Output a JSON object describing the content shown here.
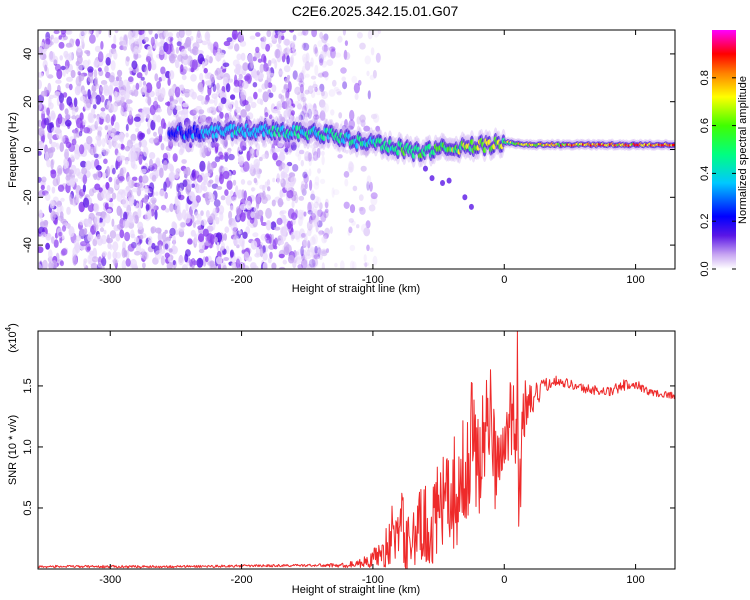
{
  "title": "C2E6.2025.342.15.01.G07",
  "colors": {
    "spectrum": [
      "#ffffff",
      "#e8d8fb",
      "#c8a6f2",
      "#8c3ef0",
      "#5a16e6",
      "#3a10d8",
      "#0000ff",
      "#00c8ff",
      "#00ff80",
      "#40ff00",
      "#ffff00",
      "#ff8000",
      "#ff0000",
      "#ff00ff"
    ],
    "snr_line": "#ee2a2a",
    "axis": "#000000"
  },
  "chart_data": [
    {
      "type": "heatmap",
      "title": "C2E6.2025.342.15.01.G07",
      "xlabel": "Height of straight line (km)",
      "ylabel": "Frequency (Hz)",
      "xlim": [
        -355,
        130
      ],
      "ylim": [
        -50,
        50
      ],
      "x_ticks": [
        -300,
        -200,
        -100,
        0,
        100
      ],
      "x_tick_labels": [
        "-300",
        "-200",
        "-100",
        "0",
        "100"
      ],
      "y_ticks": [
        -40,
        -20,
        0,
        20,
        40
      ],
      "y_tick_labels": [
        "-40",
        "-20",
        "0",
        "20",
        "40"
      ],
      "colorbar": {
        "label": "Normalized spectral amplitude",
        "range": [
          0,
          1
        ],
        "ticks": [
          0.0,
          0.2,
          0.4,
          0.6,
          0.8
        ],
        "tick_labels": [
          "0.0",
          "0.2",
          "0.4",
          "0.6",
          "0.8"
        ]
      },
      "ridge": {
        "description_x": [
          -250,
          -210,
          -180,
          -150,
          -130,
          -110,
          -90,
          -70,
          -50,
          -30,
          -10,
          0,
          20,
          60,
          100,
          130
        ],
        "center_freq_hz": [
          7,
          8,
          8,
          7,
          6,
          3,
          2,
          -1,
          0,
          1,
          2,
          3,
          2,
          2,
          2,
          2
        ],
        "peak_amplitude": [
          0.3,
          0.45,
          0.5,
          0.55,
          0.6,
          0.55,
          0.6,
          0.65,
          0.7,
          0.8,
          0.85,
          0.8,
          0.9,
          1.0,
          1.0,
          1.0
        ]
      },
      "noise_region_x": [
        -355,
        -135
      ]
    },
    {
      "type": "line",
      "title": "",
      "xlabel": "Height of straight line (km)",
      "ylabel": "SNR (10 * v/v)",
      "y_multiplier_label": "(x10",
      "y_multiplier_exp": "4",
      "xlim": [
        -355,
        130
      ],
      "ylim": [
        0,
        1.95
      ],
      "x_ticks": [
        -300,
        -200,
        -100,
        0,
        100
      ],
      "x_tick_labels": [
        "-300",
        "-200",
        "-100",
        "0",
        "100"
      ],
      "y_ticks": [
        0.5,
        1.0,
        1.5
      ],
      "y_tick_labels": [
        "0.5",
        "1.0",
        "1.5"
      ],
      "series": [
        {
          "name": "SNR",
          "x": [
            -355,
            -300,
            -250,
            -200,
            -150,
            -120,
            -105,
            -95,
            -88,
            -82,
            -80,
            -75,
            -70,
            -60,
            -50,
            -40,
            -30,
            -25,
            -20,
            -15,
            -10,
            -5,
            0,
            5,
            8,
            10,
            12,
            15,
            20,
            30,
            40,
            60,
            80,
            90,
            100,
            110,
            130
          ],
          "mean": [
            0.02,
            0.02,
            0.02,
            0.025,
            0.03,
            0.03,
            0.06,
            0.12,
            0.2,
            0.35,
            0.45,
            0.2,
            0.3,
            0.35,
            0.45,
            0.6,
            0.75,
            1.1,
            0.9,
            1.1,
            1.2,
            0.8,
            1.0,
            1.25,
            1.2,
            1.3,
            0.7,
            1.3,
            1.35,
            1.5,
            1.55,
            1.48,
            1.45,
            1.5,
            1.52,
            1.45,
            1.42
          ],
          "spread": [
            0.01,
            0.01,
            0.01,
            0.01,
            0.01,
            0.02,
            0.05,
            0.1,
            0.2,
            0.35,
            0.35,
            0.25,
            0.3,
            0.35,
            0.4,
            0.45,
            0.5,
            0.5,
            0.55,
            0.5,
            0.5,
            0.45,
            0.35,
            0.3,
            0.35,
            0.5,
            0.4,
            0.3,
            0.15,
            0.06,
            0.04,
            0.04,
            0.04,
            0.05,
            0.04,
            0.03,
            0.03
          ],
          "max_spike": {
            "x": 10,
            "y": 1.95
          },
          "min_dip": {
            "x": 11,
            "y": 0.35
          }
        }
      ]
    }
  ]
}
